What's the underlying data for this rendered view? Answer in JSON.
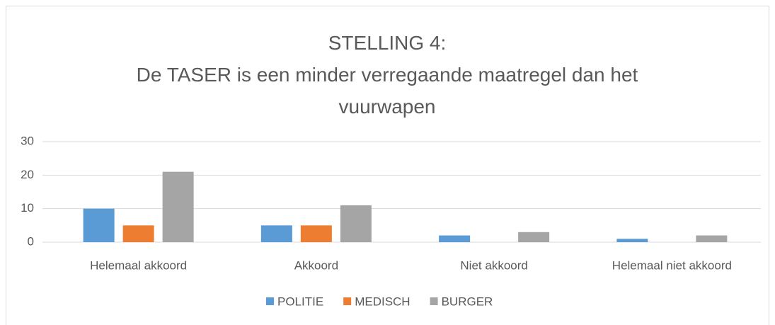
{
  "chart_data": {
    "type": "bar",
    "title": [
      "STELLING 4:",
      "De TASER is een minder verregaande maatregel dan het vuurwapen"
    ],
    "categories": [
      "Helemaal akkoord",
      "Akkoord",
      "Niet akkoord",
      "Helemaal niet akkoord"
    ],
    "series": [
      {
        "name": "POLITIE",
        "color": "#5b9bd5",
        "values": [
          10,
          5,
          2,
          1
        ]
      },
      {
        "name": "MEDISCH",
        "color": "#ed7d31",
        "values": [
          5,
          5,
          0,
          0
        ]
      },
      {
        "name": "BURGER",
        "color": "#a5a5a5",
        "values": [
          21,
          11,
          3,
          2
        ]
      }
    ],
    "ylim": [
      0,
      30
    ],
    "yticks": [
      0,
      10,
      20,
      30
    ],
    "grid": true,
    "legend": "bottom"
  }
}
